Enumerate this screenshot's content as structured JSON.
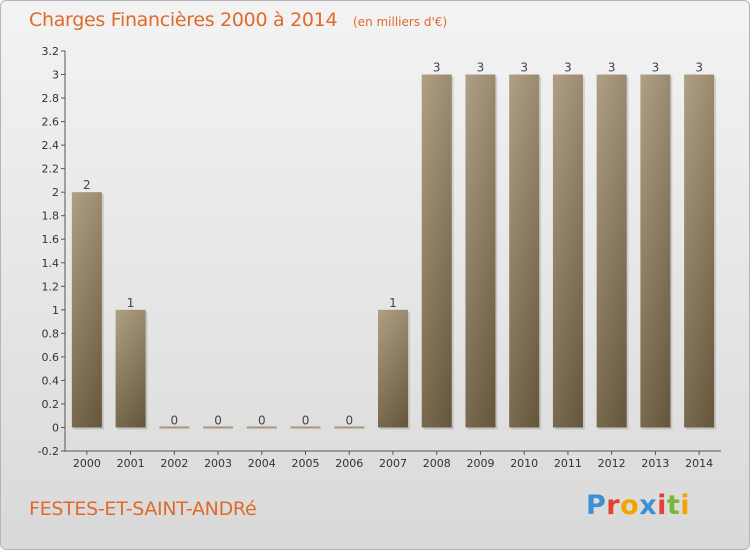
{
  "header": {
    "title": "Charges Financières 2000 à 2014",
    "unit": "(en milliers d'€)"
  },
  "footer": {
    "commune": "FESTES-ET-SAINT-ANDRé",
    "logo_letters": [
      "P",
      "r",
      "o",
      "x",
      "i",
      "t",
      "i"
    ],
    "logo_colors": [
      "#3d8fd6",
      "#e8402f",
      "#f2a400",
      "#3d8fd6",
      "#e8402f",
      "#77b83a",
      "#f2a400"
    ]
  },
  "colors": {
    "bar_top": "#a8977a",
    "bar_bottom": "#6d5c40",
    "text_accent": "#e06a2a"
  },
  "chart_data": {
    "type": "bar",
    "title": "Charges Financières 2000 à 2014",
    "subtitle": "(en milliers d'€)",
    "xlabel": "",
    "ylabel": "",
    "categories": [
      "2000",
      "2001",
      "2002",
      "2003",
      "2004",
      "2005",
      "2006",
      "2007",
      "2008",
      "2009",
      "2010",
      "2011",
      "2012",
      "2013",
      "2014"
    ],
    "values": [
      2,
      1,
      0,
      0,
      0,
      0,
      0,
      1,
      3,
      3,
      3,
      3,
      3,
      3,
      3
    ],
    "data_labels": [
      "2",
      "1",
      "0",
      "0",
      "0",
      "0",
      "0",
      "1",
      "3",
      "3",
      "3",
      "3",
      "3",
      "3",
      "3"
    ],
    "ylim": [
      -0.2,
      3.2
    ],
    "y_ticks": [
      -0.2,
      0,
      0.2,
      0.4,
      0.6,
      0.8,
      1,
      1.2,
      1.4,
      1.6,
      1.8,
      2,
      2.2,
      2.4,
      2.6,
      2.8,
      3,
      3.2
    ],
    "y_tick_labels": [
      "-0.2",
      "0",
      "0.2",
      "0.4",
      "0.6",
      "0.8",
      "1",
      "1.2",
      "1.4",
      "1.6",
      "1.8",
      "2",
      "2.2",
      "2.4",
      "2.6",
      "2.8",
      "3",
      "3.2"
    ],
    "grid": false,
    "legend": "none"
  }
}
